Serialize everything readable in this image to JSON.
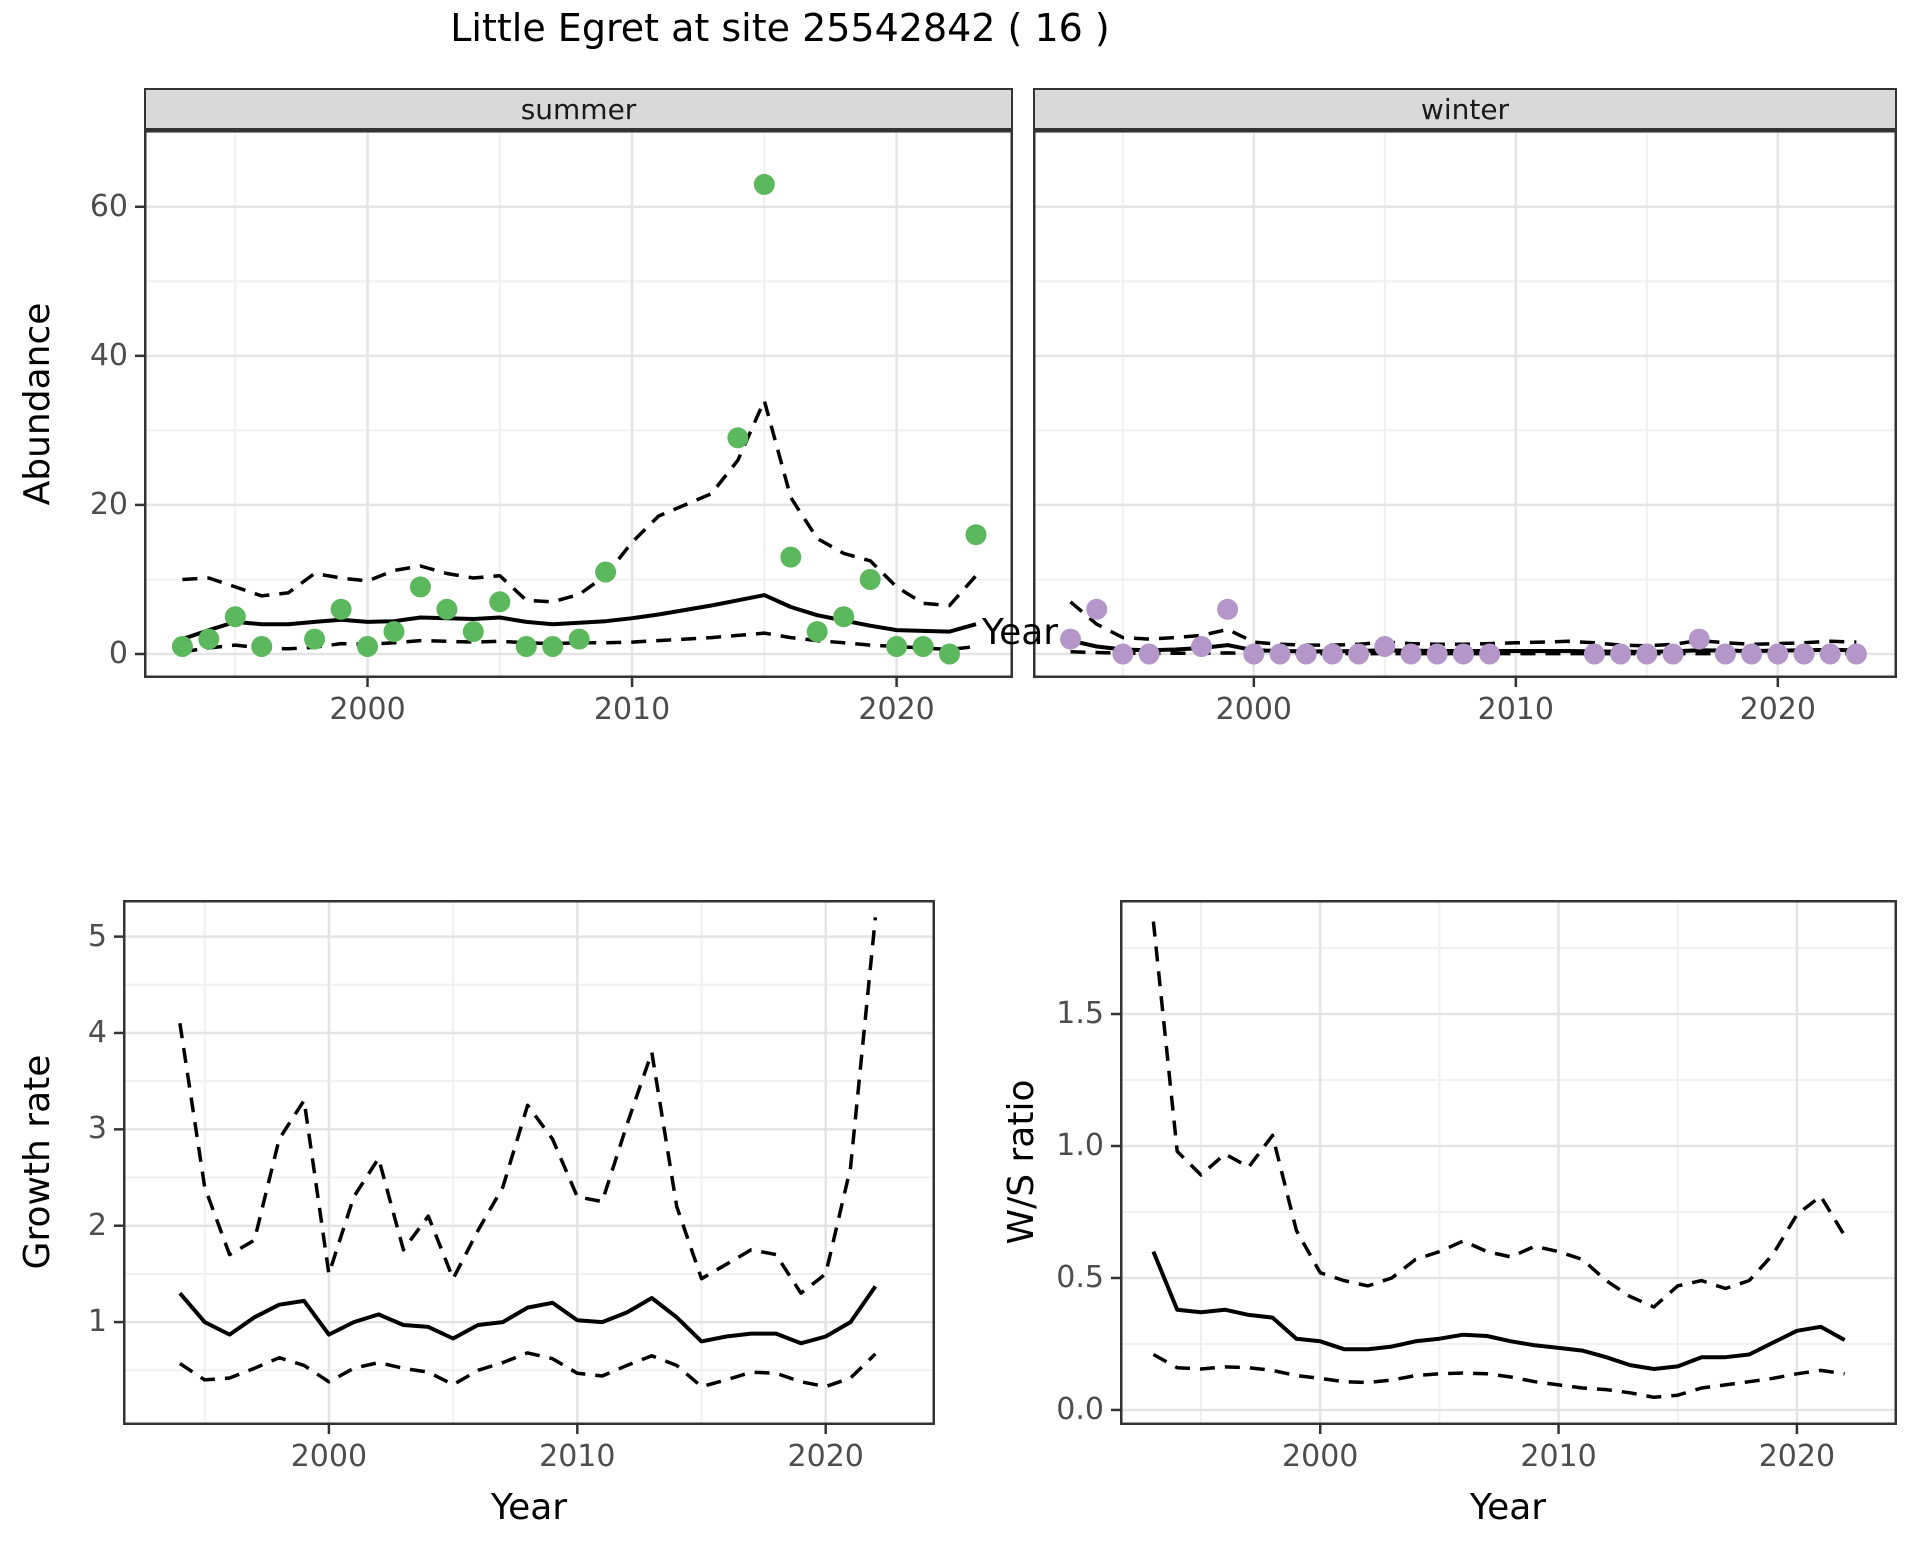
{
  "title": "Little Egret at site 25542842 ( 16 )",
  "labels": {
    "year": "Year",
    "abundance": "Abundance",
    "growth_rate": "Growth rate",
    "ws_ratio": "W/S ratio"
  },
  "facets": {
    "summer": "summer",
    "winter": "winter"
  },
  "colors": {
    "summer_point": "#5cb85c",
    "winter_point": "#b496c8",
    "line": "#000000",
    "strip_bg": "#d9d9d9",
    "strip_border": "#333333",
    "panel_border": "#333333",
    "grid_major": "#e4e4e4",
    "grid_minor": "#f0f0f0",
    "tick_mark": "#333333",
    "tick_label": "#4d4d4d",
    "background": "#ffffff"
  },
  "chart_data": [
    {
      "id": "abundance_summer",
      "type": "scatter",
      "facet": "summer",
      "ylabel": "Abundance",
      "xlabel": "Year",
      "x": {
        "domain": [
          1991.55,
          2024.4
        ],
        "ticks": [
          2000,
          2010,
          2020
        ],
        "tick_labels": [
          "2000",
          "2010",
          "2020"
        ],
        "minor": [
          1995,
          2005,
          2015,
          2025
        ],
        "show_tick_labels": true
      },
      "y": {
        "domain": [
          -3.22,
          70.3
        ],
        "ticks": [
          0,
          20,
          40,
          60
        ],
        "tick_labels": [
          "0",
          "20",
          "40",
          "60"
        ],
        "minor": [
          10,
          30,
          50,
          70
        ],
        "show_tick_labels": true
      },
      "series": [
        {
          "name": "upper_ci",
          "style": "dashed",
          "start": 1993,
          "values": [
            10.0,
            10.2,
            9.0,
            7.8,
            8.2,
            10.8,
            10.2,
            9.8,
            11.2,
            11.8,
            10.8,
            10.2,
            10.5,
            7.2,
            7.0,
            8.0,
            10.5,
            15.0,
            18.5,
            20.0,
            21.5,
            26.0,
            34.0,
            21.0,
            15.5,
            13.5,
            12.5,
            9.0,
            6.8,
            6.5,
            10.5
          ]
        },
        {
          "name": "lower_ci",
          "style": "dashed",
          "start": 1993,
          "values": [
            0.3,
            0.8,
            1.2,
            0.8,
            0.7,
            0.9,
            1.4,
            1.3,
            1.5,
            1.8,
            1.7,
            1.6,
            1.7,
            1.5,
            1.4,
            1.5,
            1.5,
            1.6,
            1.8,
            2.0,
            2.2,
            2.5,
            2.8,
            2.2,
            1.8,
            1.5,
            1.2,
            1.0,
            0.8,
            0.6,
            1.0
          ]
        },
        {
          "name": "median",
          "style": "solid",
          "start": 1993,
          "values": [
            2.0,
            3.2,
            4.3,
            4.0,
            4.0,
            4.3,
            4.6,
            4.3,
            4.4,
            4.9,
            4.8,
            4.7,
            4.9,
            4.3,
            4.0,
            4.2,
            4.4,
            4.8,
            5.3,
            5.9,
            6.5,
            7.2,
            7.9,
            6.3,
            5.2,
            4.5,
            3.8,
            3.2,
            3.1,
            3.0,
            4.0
          ]
        }
      ],
      "points": {
        "color_key": "summer_point",
        "years": [
          1993,
          1994,
          1995,
          1996,
          1998,
          1999,
          2000,
          2001,
          2002,
          2003,
          2004,
          2005,
          2006,
          2007,
          2008,
          2009,
          2014,
          2015,
          2016,
          2017,
          2018,
          2019,
          2020,
          2021,
          2022,
          2023
        ],
        "values": [
          1,
          2,
          5,
          1,
          2,
          6,
          1,
          3,
          9,
          6,
          3,
          7,
          1,
          1,
          2,
          11,
          29,
          63,
          13,
          3,
          5,
          10,
          1,
          1,
          0,
          16
        ]
      }
    },
    {
      "id": "abundance_winter",
      "type": "scatter",
      "facet": "winter",
      "ylabel": "Abundance",
      "xlabel": "Year",
      "x": {
        "domain": [
          1991.57,
          2024.55
        ],
        "ticks": [
          2000,
          2010,
          2020
        ],
        "tick_labels": [
          "2000",
          "2010",
          "2020"
        ],
        "minor": [
          1995,
          2005,
          2015,
          2025
        ],
        "show_tick_labels": true
      },
      "y": {
        "domain": [
          -3.22,
          70.3
        ],
        "ticks": [
          0,
          20,
          40,
          60
        ],
        "tick_labels": [
          "0",
          "20",
          "40",
          "60"
        ],
        "minor": [
          10,
          30,
          50,
          70
        ],
        "show_tick_labels": false
      },
      "series": [
        {
          "name": "upper_ci",
          "style": "dashed",
          "start": 1993,
          "values": [
            7.0,
            4.0,
            2.2,
            2.0,
            2.2,
            2.5,
            3.3,
            1.6,
            1.3,
            1.2,
            1.2,
            1.3,
            1.6,
            1.4,
            1.3,
            1.3,
            1.4,
            1.5,
            1.6,
            1.7,
            1.5,
            1.2,
            1.1,
            1.3,
            1.8,
            1.5,
            1.3,
            1.4,
            1.5,
            1.7,
            1.6
          ]
        },
        {
          "name": "lower_ci",
          "style": "dashed",
          "start": 1993,
          "values": [
            0.3,
            0.2,
            0.1,
            0.1,
            0.1,
            0.1,
            0.15,
            0.05,
            0.05,
            0.05,
            0.05,
            0.05,
            0.05,
            0.05,
            0.05,
            0.05,
            0.05,
            0.05,
            0.05,
            0.05,
            0.05,
            0.05,
            0.05,
            0.05,
            0.05,
            0.05,
            0.05,
            0.05,
            0.05,
            0.05,
            0.05
          ]
        },
        {
          "name": "median",
          "style": "solid",
          "start": 1993,
          "values": [
            1.8,
            1.0,
            0.6,
            0.5,
            0.6,
            0.8,
            1.2,
            0.5,
            0.4,
            0.35,
            0.35,
            0.4,
            0.5,
            0.45,
            0.4,
            0.4,
            0.4,
            0.4,
            0.4,
            0.4,
            0.35,
            0.3,
            0.3,
            0.35,
            0.5,
            0.45,
            0.4,
            0.45,
            0.5,
            0.55,
            0.5
          ]
        }
      ],
      "points": {
        "color_key": "winter_point",
        "years": [
          1993,
          1994,
          1995,
          1996,
          1998,
          1999,
          2000,
          2001,
          2002,
          2003,
          2004,
          2005,
          2006,
          2007,
          2008,
          2009,
          2013,
          2014,
          2015,
          2016,
          2017,
          2018,
          2019,
          2020,
          2021,
          2022,
          2023
        ],
        "values": [
          2,
          6,
          0,
          0,
          1,
          6,
          0,
          0,
          0,
          0,
          0,
          1,
          0,
          0,
          0,
          0,
          0,
          0,
          0,
          0,
          2,
          0,
          0,
          0,
          0,
          0,
          0
        ]
      }
    },
    {
      "id": "growth_rate",
      "type": "line",
      "facet": null,
      "ylabel": "Growth rate",
      "xlabel": "Year",
      "x": {
        "domain": [
          1991.71,
          2024.4
        ],
        "ticks": [
          2000,
          2010,
          2020
        ],
        "tick_labels": [
          "2000",
          "2010",
          "2020"
        ],
        "minor": [
          1995,
          2005,
          2015,
          2025
        ],
        "show_tick_labels": true
      },
      "y": {
        "domain": [
          -0.068,
          5.38
        ],
        "ticks": [
          1,
          2,
          3,
          4,
          5
        ],
        "tick_labels": [
          "1",
          "2",
          "3",
          "4",
          "5"
        ],
        "minor": [
          0.5,
          1.5,
          2.5,
          3.5,
          4.5
        ],
        "show_tick_labels": true
      },
      "series": [
        {
          "name": "upper_ci",
          "style": "dashed",
          "start": 1994,
          "values": [
            4.1,
            2.4,
            1.7,
            1.85,
            2.9,
            3.3,
            1.5,
            2.3,
            2.7,
            1.75,
            2.1,
            1.45,
            1.95,
            2.4,
            3.25,
            2.9,
            2.3,
            2.25,
            3.05,
            3.8,
            2.2,
            1.45,
            1.6,
            1.75,
            1.7,
            1.3,
            1.5,
            2.6,
            5.2
          ]
        },
        {
          "name": "lower_ci",
          "style": "dashed",
          "start": 1994,
          "values": [
            0.57,
            0.4,
            0.42,
            0.52,
            0.63,
            0.55,
            0.38,
            0.52,
            0.58,
            0.52,
            0.48,
            0.35,
            0.5,
            0.58,
            0.68,
            0.62,
            0.47,
            0.44,
            0.55,
            0.65,
            0.55,
            0.33,
            0.4,
            0.48,
            0.47,
            0.38,
            0.33,
            0.42,
            0.67
          ]
        },
        {
          "name": "median",
          "style": "solid",
          "start": 1994,
          "values": [
            1.3,
            1.0,
            0.87,
            1.05,
            1.18,
            1.22,
            0.87,
            1.0,
            1.08,
            0.97,
            0.95,
            0.83,
            0.97,
            1.0,
            1.15,
            1.2,
            1.02,
            1.0,
            1.1,
            1.25,
            1.05,
            0.8,
            0.85,
            0.88,
            0.88,
            0.78,
            0.85,
            1.0,
            1.37
          ]
        }
      ],
      "points": null
    },
    {
      "id": "ws_ratio",
      "type": "line",
      "facet": null,
      "ylabel": "W/S ratio",
      "xlabel": "Year",
      "x": {
        "domain": [
          1991.6,
          2024.2
        ],
        "ticks": [
          2000,
          2010,
          2020
        ],
        "tick_labels": [
          "2000",
          "2010",
          "2020"
        ],
        "minor": [
          1995,
          2005,
          2015,
          2025
        ],
        "show_tick_labels": true
      },
      "y": {
        "domain": [
          -0.057,
          1.932
        ],
        "ticks": [
          0.0,
          0.5,
          1.0,
          1.5
        ],
        "tick_labels": [
          "0.0",
          "0.5",
          "1.0",
          "1.5"
        ],
        "minor": [
          0.25,
          0.75,
          1.25,
          1.75
        ],
        "show_tick_labels": true
      },
      "series": [
        {
          "name": "upper_ci",
          "style": "dashed",
          "start": 1993,
          "values": [
            1.85,
            0.98,
            0.89,
            0.97,
            0.92,
            1.04,
            0.68,
            0.52,
            0.49,
            0.47,
            0.5,
            0.57,
            0.6,
            0.64,
            0.6,
            0.58,
            0.62,
            0.6,
            0.57,
            0.49,
            0.43,
            0.39,
            0.47,
            0.49,
            0.46,
            0.49,
            0.59,
            0.74,
            0.81,
            0.66
          ]
        },
        {
          "name": "lower_ci",
          "style": "dashed",
          "start": 1993,
          "values": [
            0.21,
            0.16,
            0.155,
            0.163,
            0.16,
            0.15,
            0.13,
            0.12,
            0.107,
            0.104,
            0.113,
            0.13,
            0.137,
            0.14,
            0.137,
            0.125,
            0.107,
            0.095,
            0.083,
            0.077,
            0.065,
            0.048,
            0.056,
            0.083,
            0.095,
            0.107,
            0.12,
            0.137,
            0.15,
            0.137
          ]
        },
        {
          "name": "median",
          "style": "solid",
          "start": 1993,
          "values": [
            0.6,
            0.38,
            0.37,
            0.38,
            0.36,
            0.35,
            0.27,
            0.26,
            0.23,
            0.23,
            0.24,
            0.26,
            0.27,
            0.285,
            0.28,
            0.26,
            0.245,
            0.235,
            0.225,
            0.2,
            0.17,
            0.155,
            0.165,
            0.2,
            0.2,
            0.21,
            0.255,
            0.3,
            0.315,
            0.265
          ]
        }
      ],
      "points": null
    }
  ]
}
